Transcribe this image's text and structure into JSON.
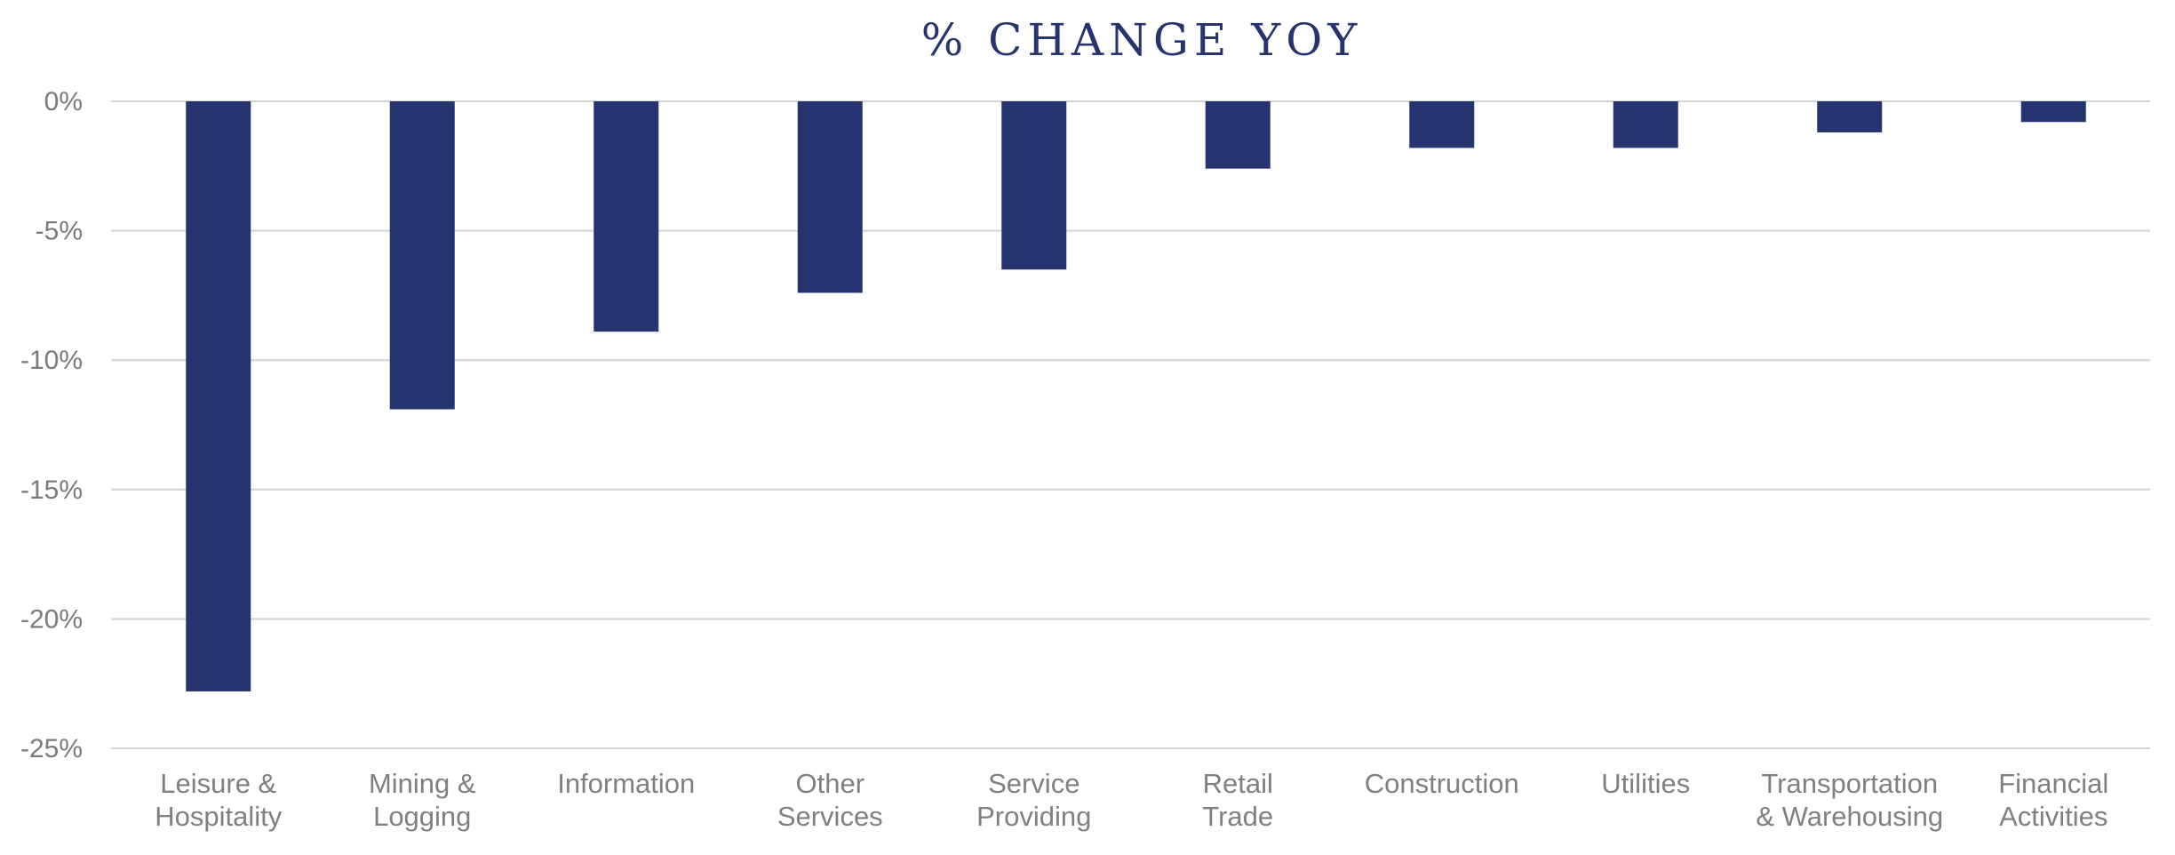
{
  "chart_data": {
    "type": "bar",
    "title": "% CHANGE YOY",
    "xlabel": "",
    "ylabel": "",
    "ylim": [
      -25,
      0
    ],
    "yticks": [
      0,
      -5,
      -10,
      -15,
      -20,
      -25
    ],
    "ytick_labels": [
      "0%",
      "-5%",
      "-10%",
      "-15%",
      "-20%",
      "-25%"
    ],
    "grid": true,
    "legend": "none",
    "bar_color": "#25346f",
    "categories": [
      [
        "Leisure &",
        "Hospitality"
      ],
      [
        "Mining &",
        "Logging"
      ],
      [
        "Information"
      ],
      [
        "Other",
        "Services"
      ],
      [
        "Service",
        "Providing"
      ],
      [
        "Retail",
        "Trade"
      ],
      [
        "Construction"
      ],
      [
        "Utilities"
      ],
      [
        "Transportation",
        "& Warehousing"
      ],
      [
        "Financial",
        "Activities"
      ]
    ],
    "values": [
      -22.8,
      -11.9,
      -8.9,
      -7.4,
      -6.5,
      -2.6,
      -1.8,
      -1.8,
      -1.2,
      -0.8
    ]
  }
}
